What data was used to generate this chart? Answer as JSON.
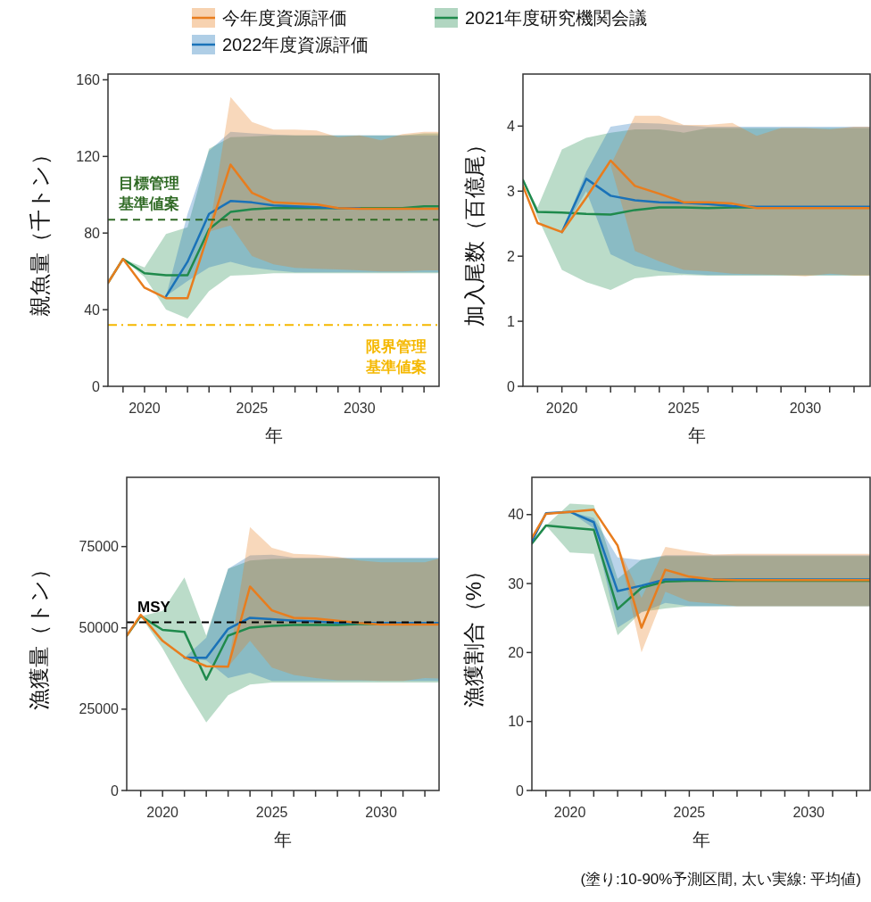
{
  "chart_data": [
    {
      "type": "line",
      "legend": "top",
      "ylabel": "親魚量（千トン）",
      "xlabel": "年",
      "xlim": [
        2018.3,
        2033.7
      ],
      "ylim": [
        0,
        163
      ],
      "yticks": [
        0,
        40,
        80,
        120,
        160
      ],
      "xticks": [
        {
          "value": 2019,
          "label": null
        },
        2020,
        {
          "value": 2021,
          "label": null
        },
        {
          "value": 2022,
          "label": null
        },
        {
          "value": 2023,
          "label": null
        },
        {
          "value": 2024,
          "label": null
        },
        2025,
        {
          "value": 2026,
          "label": null
        },
        {
          "value": 2027,
          "label": null
        },
        {
          "value": 2028,
          "label": null
        },
        {
          "value": 2029,
          "label": null
        },
        2030,
        {
          "value": 2031,
          "label": null
        },
        {
          "value": 2032,
          "label": null
        },
        {
          "value": 2033,
          "label": null
        }
      ],
      "ref_lines": [
        {
          "axis": "y",
          "value": 87,
          "label": "目標管理基準値案",
          "color": "#2f6a24",
          "line_style": "dashed"
        },
        {
          "axis": "y",
          "value": 32,
          "label": "限界管理基準値案",
          "color": "#f5b800",
          "line_style": "dashdot"
        }
      ],
      "series": [
        {
          "name": "今年度資源評価",
          "color": "#e87d1e",
          "x": [
            2018.3,
            2019,
            2020,
            2021,
            2022,
            2023,
            2024,
            2025,
            2026,
            2027,
            2028,
            2029,
            2030,
            2031,
            2032,
            2033,
            2033.7
          ],
          "values": [
            54,
            66.5,
            51.5,
            46,
            46,
            80.7,
            115.7,
            101,
            96,
            95.5,
            95,
            93,
            92.7,
            92.7,
            92.7,
            92.7,
            92.7
          ],
          "lower": [
            null,
            null,
            null,
            null,
            null,
            80.7,
            84,
            68,
            63.7,
            61.8,
            61.3,
            61,
            60.5,
            60,
            60,
            60.5,
            60.5
          ],
          "upper": [
            null,
            null,
            null,
            null,
            null,
            80.7,
            151,
            138,
            134,
            134,
            133.5,
            130,
            131,
            128.4,
            131.7,
            132.8,
            132.8
          ]
        },
        {
          "name": "2022年度資源評価",
          "color": "#1a72b8",
          "x": [
            2021,
            2022,
            2023,
            2024,
            2025,
            2026,
            2027,
            2028,
            2029,
            2030,
            2031,
            2032,
            2033,
            2033.7
          ],
          "values": [
            47,
            65,
            90,
            96.7,
            96,
            94.4,
            94,
            93.5,
            93,
            93,
            null,
            null,
            null,
            null
          ],
          "lower": [
            47,
            55,
            62,
            65,
            62,
            60.5,
            59.5,
            59.5,
            59.5,
            59.5,
            59.5,
            59.5,
            59.5,
            59.5
          ],
          "upper": [
            47,
            90,
            123,
            132.8,
            132,
            131.5,
            131,
            131,
            131,
            131,
            131,
            131,
            131,
            131
          ]
        },
        {
          "name": "2021年度研究機関会議",
          "color": "#1f8a4c",
          "x": [
            2018.3,
            2019,
            2020,
            2021,
            2022,
            2023,
            2024,
            2025,
            2026,
            2027,
            2028,
            2029,
            2030,
            2031,
            2032,
            2033,
            2033.7
          ],
          "values": [
            54,
            66.5,
            59,
            58,
            58,
            82,
            91,
            92.4,
            93,
            93,
            93,
            93,
            93,
            93,
            93,
            94,
            94
          ],
          "lower": [
            null,
            66.5,
            57,
            40,
            35.4,
            49.7,
            57.8,
            58.2,
            59,
            59,
            59,
            59,
            59,
            59,
            59,
            59,
            59
          ],
          "upper": [
            null,
            66.5,
            62,
            79.5,
            83,
            124,
            130,
            130.4,
            131,
            131,
            131,
            131,
            131,
            131,
            131,
            132,
            132
          ]
        }
      ]
    },
    {
      "type": "line",
      "ylabel": "加入尾数（百億尾）",
      "xlabel": "年",
      "xlim": [
        2018.4,
        2032.66
      ],
      "ylim": [
        0,
        4.8
      ],
      "yticks": [
        0,
        1,
        2,
        3,
        4
      ],
      "xticks": [
        {
          "value": 2019,
          "label": null
        },
        2020,
        {
          "value": 2021,
          "label": null
        },
        {
          "value": 2022,
          "label": null
        },
        {
          "value": 2023,
          "label": null
        },
        {
          "value": 2024,
          "label": null
        },
        2025,
        {
          "value": 2026,
          "label": null
        },
        {
          "value": 2027,
          "label": null
        },
        {
          "value": 2028,
          "label": null
        },
        {
          "value": 2029,
          "label": null
        },
        2030,
        {
          "value": 2031,
          "label": null
        },
        {
          "value": 2032,
          "label": null
        }
      ],
      "series": [
        {
          "color": "#e87d1e",
          "x": [
            2018.4,
            2019,
            2020,
            2021,
            2022,
            2023,
            2024,
            2025,
            2026,
            2027,
            2028,
            2029,
            2030,
            2031,
            2032,
            2032.66
          ],
          "values": [
            3.08,
            2.51,
            2.37,
            2.9,
            3.47,
            3.08,
            2.96,
            2.83,
            2.83,
            2.81,
            2.74,
            2.74,
            2.74,
            2.74,
            2.74,
            2.74
          ],
          "lower": [
            null,
            null,
            null,
            null,
            3.4,
            2.08,
            1.92,
            1.79,
            1.77,
            1.73,
            1.72,
            1.71,
            1.69,
            1.73,
            1.7,
            1.7
          ],
          "upper": [
            null,
            null,
            null,
            null,
            3.4,
            4.16,
            4.16,
            4.02,
            4.02,
            4.05,
            3.85,
            3.97,
            3.97,
            3.95,
            3.99,
            3.99
          ]
        },
        {
          "color": "#1a72b8",
          "x": [
            2020,
            2021,
            2022,
            2023,
            2024,
            2025,
            2026,
            2027,
            2028,
            2029,
            2030,
            2031,
            2032,
            2032.66
          ],
          "values": [
            2.37,
            3.19,
            2.93,
            2.86,
            2.83,
            2.82,
            2.8,
            2.77,
            2.76,
            2.76,
            2.76,
            2.76,
            2.76,
            2.76
          ],
          "lower": [
            2.37,
            3.0,
            2.03,
            1.85,
            1.77,
            1.73,
            1.71,
            1.71,
            1.71,
            1.71,
            1.71,
            1.71,
            1.71,
            1.71
          ],
          "upper": [
            2.37,
            3.3,
            3.99,
            4.05,
            4.04,
            4.01,
            3.99,
            3.99,
            3.99,
            3.99,
            3.99,
            3.99,
            3.99,
            3.99
          ]
        },
        {
          "color": "#1f8a4c",
          "x": [
            2018.4,
            2019,
            2020,
            2021,
            2022,
            2023,
            2024,
            2025,
            2026,
            2027,
            2028,
            2029,
            2030,
            2031,
            2032,
            2032.66
          ],
          "values": [
            3.17,
            2.68,
            2.67,
            2.65,
            2.64,
            2.71,
            2.75,
            2.75,
            2.74,
            2.75,
            2.75,
            2.75,
            null,
            null,
            null,
            null
          ],
          "lower": [
            3.17,
            2.6,
            1.79,
            1.6,
            1.48,
            1.66,
            1.7,
            1.71,
            1.7,
            1.7,
            1.7,
            1.7,
            1.7,
            1.7,
            1.7,
            1.7
          ],
          "upper": [
            3.17,
            2.75,
            3.64,
            3.82,
            3.9,
            3.95,
            3.95,
            3.9,
            3.97,
            3.97,
            3.97,
            3.97,
            3.97,
            3.97,
            3.97,
            3.97
          ]
        }
      ]
    },
    {
      "type": "line",
      "ylabel": "漁獲量（トン）",
      "xlabel": "年",
      "xlim": [
        2018.36,
        2032.65
      ],
      "ylim": [
        0,
        96300
      ],
      "yticks": [
        0,
        25000,
        50000,
        75000
      ],
      "xticks": [
        {
          "value": 2019,
          "label": null
        },
        2020,
        {
          "value": 2021,
          "label": null
        },
        {
          "value": 2022,
          "label": null
        },
        {
          "value": 2023,
          "label": null
        },
        {
          "value": 2024,
          "label": null
        },
        2025,
        {
          "value": 2026,
          "label": null
        },
        {
          "value": 2027,
          "label": null
        },
        {
          "value": 2028,
          "label": null
        },
        {
          "value": 2029,
          "label": null
        },
        2030,
        {
          "value": 2031,
          "label": null
        },
        {
          "value": 2032,
          "label": null
        }
      ],
      "ref_lines": [
        {
          "axis": "y",
          "value": 51700,
          "label": "MSY",
          "color": "#000000",
          "line_style": "dashed"
        }
      ],
      "series": [
        {
          "color": "#e87d1e",
          "x": [
            2018.36,
            2019,
            2020,
            2021,
            2022,
            2023,
            2024,
            2025,
            2026,
            2027,
            2028,
            2029,
            2030,
            2031,
            2032,
            2032.65
          ],
          "values": [
            47600,
            54000,
            46000,
            41000,
            38200,
            38100,
            62700,
            55400,
            53100,
            52900,
            52200,
            51500,
            51000,
            51000,
            51000,
            51000
          ],
          "lower": [
            null,
            null,
            null,
            null,
            null,
            38100,
            46000,
            37800,
            35500,
            34600,
            33900,
            33900,
            33700,
            33700,
            34600,
            34400
          ],
          "upper": [
            null,
            null,
            null,
            null,
            null,
            38100,
            81000,
            74600,
            72800,
            72500,
            71900,
            70700,
            70200,
            70200,
            70200,
            71300
          ]
        },
        {
          "color": "#1a72b8",
          "x": [
            2021,
            2022,
            2023,
            2024,
            2025,
            2026,
            2027,
            2028,
            2029,
            2030,
            2031,
            2032,
            2032.65
          ],
          "values": [
            40800,
            40800,
            49700,
            53100,
            52700,
            52200,
            52000,
            51500,
            51500,
            51500,
            51500,
            51500,
            51500
          ],
          "lower": [
            40800,
            40000,
            34600,
            36200,
            33700,
            33700,
            33700,
            33700,
            33700,
            33700,
            33700,
            33700,
            33700
          ],
          "upper": [
            40800,
            47000,
            68200,
            72300,
            72500,
            71600,
            71600,
            71600,
            71600,
            71600,
            71600,
            71600,
            71600
          ]
        },
        {
          "color": "#1f8a4c",
          "x": [
            2018.36,
            2019,
            2020,
            2021,
            2022,
            2023,
            2024,
            2025,
            2026,
            2027,
            2028,
            2029,
            2030,
            2031,
            2032,
            2032.65
          ],
          "values": [
            47600,
            53600,
            49400,
            48800,
            34100,
            47600,
            50100,
            50600,
            50900,
            50900,
            50900,
            51200,
            51200,
            51200,
            null,
            null
          ],
          "lower": [
            null,
            53600,
            43700,
            31800,
            20900,
            29300,
            32600,
            33200,
            33200,
            33200,
            33200,
            33200,
            33200,
            33200,
            33200,
            33200
          ],
          "upper": [
            null,
            53600,
            55200,
            65500,
            47600,
            68200,
            70700,
            71200,
            71300,
            71300,
            71300,
            71300,
            71300,
            71300,
            71300,
            71300
          ]
        }
      ]
    },
    {
      "type": "line",
      "ylabel": "漁獲割合（%）",
      "xlabel": "年",
      "xlim": [
        2018.41,
        2032.57
      ],
      "ylim": [
        0,
        45.4
      ],
      "yticks": [
        0,
        10,
        20,
        30,
        40
      ],
      "xticks": [
        {
          "value": 2019,
          "label": null
        },
        2020,
        {
          "value": 2021,
          "label": null
        },
        {
          "value": 2022,
          "label": null
        },
        {
          "value": 2023,
          "label": null
        },
        {
          "value": 2024,
          "label": null
        },
        2025,
        {
          "value": 2026,
          "label": null
        },
        {
          "value": 2027,
          "label": null
        },
        {
          "value": 2028,
          "label": null
        },
        {
          "value": 2029,
          "label": null
        },
        2030,
        {
          "value": 2031,
          "label": null
        },
        {
          "value": 2032,
          "label": null
        }
      ],
      "annotations": [
        "(塗り:10-90%予測区間, 太い実線: 平均値)"
      ],
      "series": [
        {
          "color": "#e87d1e",
          "x": [
            2018.41,
            2019,
            2020,
            2021,
            2022,
            2023,
            2024,
            2025,
            2026,
            2027,
            2028,
            2029,
            2030,
            2031,
            2032,
            2032.57
          ],
          "values": [
            36.6,
            40.1,
            40.4,
            40.7,
            35.5,
            23.6,
            32,
            31,
            30.6,
            30.5,
            30.5,
            30.5,
            30.5,
            30.5,
            30.5,
            30.5
          ],
          "lower": [
            null,
            null,
            null,
            null,
            35.5,
            20,
            28.8,
            27.4,
            27.1,
            26.7,
            26.7,
            26.7,
            26.7,
            26.7,
            26.7,
            26.7
          ],
          "upper": [
            null,
            null,
            null,
            null,
            35.5,
            27.9,
            35.3,
            34.7,
            34.2,
            34.3,
            34.3,
            34.3,
            34.3,
            34.3,
            34.3,
            34.3
          ]
        },
        {
          "color": "#1a72b8",
          "x": [
            2018.41,
            2019,
            2020,
            2021,
            2022,
            2023,
            2024,
            2025,
            2026,
            2027,
            2028,
            2029,
            2030,
            2031,
            2032,
            2032.57
          ],
          "values": [
            36.1,
            40.2,
            40.4,
            38.9,
            28.9,
            29.7,
            30.6,
            30.6,
            30.6,
            30.6,
            30.6,
            30.6,
            30.6,
            30.6,
            30.6,
            30.6
          ],
          "lower": [
            null,
            null,
            40.4,
            38,
            23.6,
            25.8,
            27.2,
            26.7,
            26.7,
            26.7,
            26.7,
            26.7,
            26.7,
            26.7,
            26.7,
            26.7
          ],
          "upper": [
            null,
            null,
            40.4,
            39.5,
            33.8,
            33.4,
            34.1,
            34.1,
            34.1,
            34.1,
            34.1,
            34.1,
            34.1,
            34.1,
            34.1,
            34.1
          ]
        },
        {
          "color": "#1f8a4c",
          "x": [
            2018.41,
            2019,
            2020,
            2021,
            2022,
            2023,
            2024,
            2025,
            2026,
            2027,
            2028,
            2029,
            2030,
            2031,
            2032,
            2032.57
          ],
          "values": [
            35.8,
            38.4,
            38.1,
            37.8,
            26.3,
            29.4,
            30.3,
            30.4,
            30.4,
            30.4,
            30.4,
            30.4,
            30.4,
            30.4,
            30.4,
            30.4
          ],
          "lower": [
            null,
            38.4,
            34.5,
            34.3,
            22.5,
            25.9,
            26.4,
            26.7,
            26.7,
            26.7,
            26.7,
            26.7,
            26.7,
            26.7,
            26.7,
            26.7
          ],
          "upper": [
            null,
            38.4,
            41.6,
            41.4,
            30.7,
            33.5,
            34,
            34,
            34,
            34,
            34,
            34,
            34,
            34,
            34,
            34
          ]
        }
      ]
    }
  ]
}
